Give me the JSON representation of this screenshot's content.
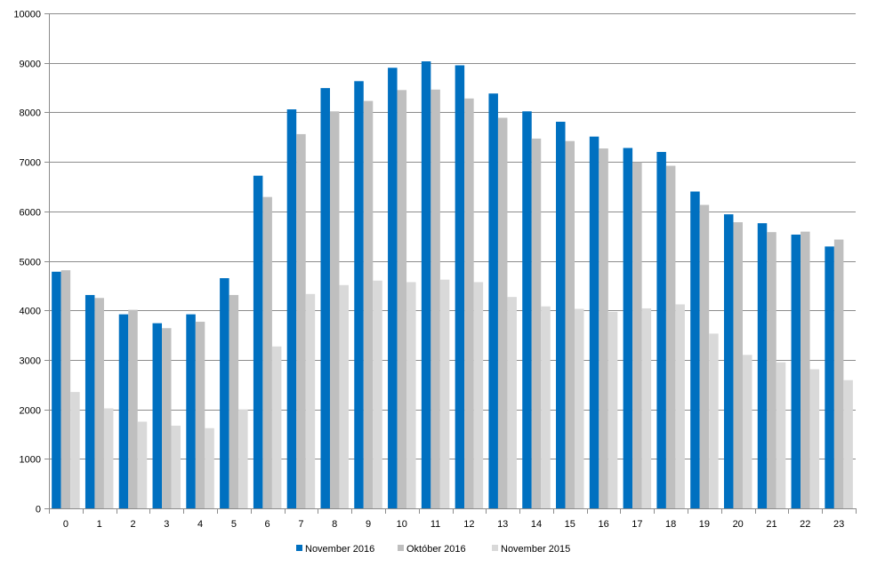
{
  "chart_data": {
    "type": "bar",
    "categories": [
      "0",
      "1",
      "2",
      "3",
      "4",
      "5",
      "6",
      "7",
      "8",
      "9",
      "10",
      "11",
      "12",
      "13",
      "14",
      "15",
      "16",
      "17",
      "18",
      "19",
      "20",
      "21",
      "22",
      "23"
    ],
    "series": [
      {
        "name": "November 2016",
        "color": "#0070C0",
        "values": [
          4780,
          4310,
          3920,
          3740,
          3920,
          4650,
          6720,
          8060,
          8490,
          8630,
          8900,
          9030,
          8950,
          8380,
          8020,
          7810,
          7510,
          7280,
          7200,
          6400,
          5940,
          5760,
          5530,
          5290
        ]
      },
      {
        "name": "Október 2016",
        "color": "#BFBFBF",
        "values": [
          4810,
          4250,
          4010,
          3640,
          3770,
          4310,
          6290,
          7560,
          8020,
          8230,
          8450,
          8460,
          8280,
          7890,
          7470,
          7420,
          7270,
          6990,
          6920,
          6130,
          5780,
          5580,
          5590,
          5430
        ]
      },
      {
        "name": "November 2015",
        "color": "#D9D9D9",
        "values": [
          2350,
          2020,
          1750,
          1670,
          1620,
          2000,
          3270,
          4330,
          4510,
          4600,
          4570,
          4620,
          4570,
          4270,
          4080,
          4030,
          3970,
          4040,
          4120,
          3530,
          3100,
          2950,
          2810,
          2590
        ]
      }
    ],
    "ylim": [
      0,
      10000
    ],
    "yticks": [
      0,
      1000,
      2000,
      3000,
      4000,
      5000,
      6000,
      7000,
      8000,
      9000,
      10000
    ],
    "grid": true,
    "legend_position": "bottom"
  }
}
